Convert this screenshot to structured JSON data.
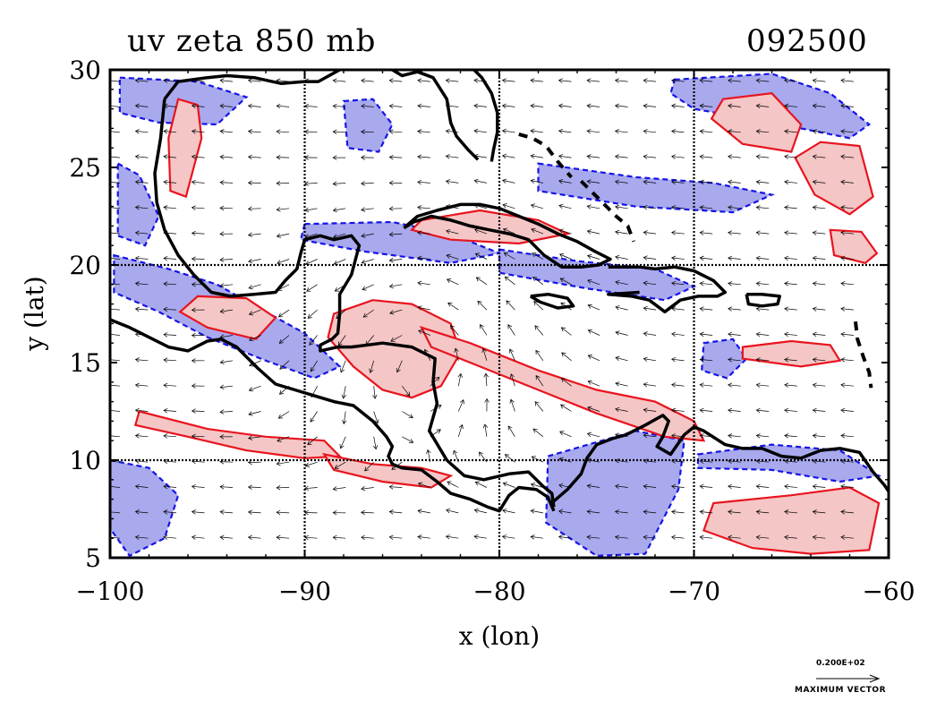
{
  "chart_data": {
    "type": "contour",
    "title_left": "uv zeta 850 mb",
    "title_right": "092500",
    "xlabel": "x (lon)",
    "ylabel": "y (lat)",
    "xlim": [
      -100,
      -60
    ],
    "ylim": [
      5,
      30
    ],
    "x_ticks": [
      -100,
      -90,
      -80,
      -70,
      -60
    ],
    "y_ticks": [
      5,
      10,
      15,
      20,
      25,
      30
    ],
    "grid_lines_x": [
      -90,
      -80,
      -70
    ],
    "grid_lines_y": [
      10,
      20
    ],
    "colors": {
      "positive_line": "#e8141e",
      "positive_fill": "#f5c6c6",
      "negative_line": "#1414e6",
      "negative_fill": "#a9a9ee",
      "coast": "#000000",
      "grid": "#000000"
    },
    "positive_regions": [
      {
        "lon": [
          -88.5,
          -86.5,
          -84.5,
          -82.5,
          -82,
          -83,
          -84.5,
          -86,
          -87.5,
          -88.8
        ],
        "lat": [
          17.5,
          18.2,
          18,
          17,
          15.5,
          13.8,
          13.2,
          13.6,
          14.8,
          16.3
        ]
      },
      {
        "lon": [
          -84,
          -81.5,
          -78,
          -75,
          -72,
          -70,
          -69.5,
          -71.5,
          -75,
          -78,
          -81,
          -83.5
        ],
        "lat": [
          16.8,
          16,
          14.6,
          13.6,
          13,
          12,
          11,
          11.2,
          12.4,
          13.6,
          14.8,
          15.8
        ]
      },
      {
        "lon": [
          -98.5,
          -95,
          -92,
          -89,
          -88.2,
          -90,
          -93,
          -96,
          -98.7
        ],
        "lat": [
          12.5,
          11.6,
          11.2,
          11,
          10.2,
          10.1,
          10.5,
          11.2,
          11.8
        ]
      },
      {
        "lon": [
          -89,
          -86.5,
          -84,
          -82.5,
          -83.5,
          -86,
          -88.5
        ],
        "lat": [
          10.3,
          9.8,
          9.6,
          9.2,
          8.6,
          8.9,
          9.5
        ]
      },
      {
        "lon": [
          -95.5,
          -93,
          -91.5,
          -92.5,
          -95,
          -96.4
        ],
        "lat": [
          18.4,
          18.3,
          17.3,
          16.2,
          16.8,
          17.6
        ]
      },
      {
        "lon": [
          -96.5,
          -95.5,
          -95.3,
          -96.1,
          -96.9,
          -97
        ],
        "lat": [
          28.5,
          28.2,
          26.5,
          23.5,
          23.8,
          26.5
        ]
      },
      {
        "lon": [
          -84,
          -81,
          -78,
          -76.5,
          -79,
          -82.5,
          -84.5
        ],
        "lat": [
          22.3,
          22.8,
          22.3,
          21.6,
          21.1,
          21.3,
          21.8
        ]
      },
      {
        "lon": [
          -68.5,
          -66,
          -64.5,
          -65,
          -67.5,
          -69.1
        ],
        "lat": [
          28.5,
          28.8,
          27.2,
          25.8,
          26.2,
          27.5
        ]
      },
      {
        "lon": [
          -63.5,
          -61.5,
          -60.8,
          -62,
          -63.8,
          -64.8
        ],
        "lat": [
          26.3,
          26.1,
          23.5,
          22.6,
          23.6,
          25.5
        ]
      },
      {
        "lon": [
          -69,
          -65,
          -62,
          -60.5,
          -61,
          -64,
          -67,
          -69.5
        ],
        "lat": [
          7.8,
          8.2,
          8.6,
          7.8,
          5.4,
          5.2,
          5.5,
          6.4
        ]
      },
      {
        "lon": [
          -67.5,
          -65,
          -63,
          -62.5,
          -64.5,
          -67.5
        ],
        "lat": [
          15.8,
          16.1,
          15.9,
          15.1,
          14.8,
          15.2
        ]
      },
      {
        "lon": [
          -63,
          -61.4,
          -60.6,
          -61.2,
          -62.8
        ],
        "lat": [
          21.8,
          21.7,
          20.6,
          20.1,
          20.5
        ]
      }
    ],
    "negative_regions": [
      {
        "lon": [
          -99.8,
          -97,
          -94.5,
          -92,
          -90,
          -88.2,
          -89.5,
          -92,
          -95,
          -97.5,
          -99.8
        ],
        "lat": [
          20.5,
          19.8,
          19,
          17.6,
          16.5,
          14.8,
          14.2,
          15.1,
          16.3,
          17.6,
          18.6
        ]
      },
      {
        "lon": [
          -99.6,
          -98.5,
          -97.5,
          -98.2,
          -99.6
        ],
        "lat": [
          25.2,
          24.6,
          22.5,
          21,
          21.5
        ]
      },
      {
        "lon": [
          -99.5,
          -95.5,
          -93,
          -94.5,
          -97.5,
          -99.5
        ],
        "lat": [
          29.6,
          29.4,
          28.6,
          27.2,
          27.3,
          27.8
        ]
      },
      {
        "lon": [
          -90,
          -85.5,
          -82.5,
          -80,
          -82.5,
          -87,
          -90.2
        ],
        "lat": [
          22.1,
          22.2,
          21.6,
          20.6,
          20.1,
          20.7,
          21.3
        ]
      },
      {
        "lon": [
          -80,
          -76,
          -72,
          -70,
          -71.5,
          -75.5,
          -80
        ],
        "lat": [
          20.8,
          20.2,
          19.8,
          18.9,
          18.2,
          18.8,
          19.6
        ]
      },
      {
        "lon": [
          -78,
          -73,
          -69,
          -66,
          -68,
          -73,
          -78
        ],
        "lat": [
          25.2,
          24.5,
          24.2,
          23.6,
          22.7,
          23,
          23.8
        ]
      },
      {
        "lon": [
          -77.5,
          -73,
          -70.5,
          -70.8,
          -72.5,
          -75,
          -77.6
        ],
        "lat": [
          10.2,
          11.5,
          11,
          8.5,
          5.2,
          5.1,
          6.8
        ]
      },
      {
        "lon": [
          -100,
          -98,
          -96.5,
          -97.2,
          -99,
          -100
        ],
        "lat": [
          10,
          9.6,
          8.2,
          6,
          5.1,
          6.5
        ]
      },
      {
        "lon": [
          -71,
          -66,
          -63,
          -61,
          -62,
          -66,
          -70,
          -71.2
        ],
        "lat": [
          29.5,
          29.8,
          28.8,
          27.2,
          26.5,
          27.3,
          28,
          28.8
        ]
      },
      {
        "lon": [
          -88,
          -86.5,
          -85.5,
          -86.2,
          -87.8
        ],
        "lat": [
          28.4,
          28.5,
          27.2,
          25.8,
          26
        ]
      },
      {
        "lon": [
          -69.5,
          -68,
          -67.3,
          -68.3,
          -69.6
        ],
        "lat": [
          16,
          16.2,
          15.2,
          14.2,
          14.6
        ]
      },
      {
        "lon": [
          -69.8,
          -66,
          -62.5,
          -60.5,
          -62.5,
          -66,
          -69.8
        ],
        "lat": [
          10.3,
          10.8,
          10.5,
          9.2,
          8.9,
          9.5,
          9.6
        ]
      }
    ],
    "coastlines": [
      {
        "name": "mexico-gulf-coast",
        "lon": [
          -97.2,
          -97.4,
          -97.7,
          -97.6,
          -97.2,
          -96.5,
          -95.7,
          -94.8,
          -93.8,
          -92.6,
          -91.5,
          -91,
          -90.4,
          -90.2,
          -90,
          -89.2,
          -88.5,
          -87.6,
          -87.2,
          -87.6,
          -88.2,
          -88.2,
          -88.3,
          -88.6,
          -89.2,
          -89.2,
          -88.3,
          -87.6,
          -86,
          -84.5,
          -83.3,
          -83.4,
          -83.2,
          -83.6,
          -82.7,
          -81.8,
          -80.8,
          -79.5,
          -78.5,
          -77.8,
          -77.3,
          -77.2
        ],
        "lat": [
          28.5,
          26.5,
          24.7,
          23.2,
          21.8,
          20.5,
          19.5,
          18.6,
          18.4,
          18.5,
          18.6,
          19.2,
          19.8,
          20.6,
          21.3,
          21.5,
          21.3,
          21.5,
          21,
          19.5,
          18.5,
          17.5,
          16.5,
          16.2,
          15.9,
          15.6,
          15.8,
          15.8,
          16,
          15.8,
          15.2,
          14,
          12.9,
          11.5,
          10,
          9.2,
          9,
          9.3,
          9.4,
          8.7,
          8.3,
          7.6
        ]
      },
      {
        "name": "us-gulf-coast",
        "lon": [
          -97.2,
          -96.5,
          -95,
          -94,
          -92.6,
          -91.2,
          -90,
          -89.3,
          -88.2,
          -87.3,
          -86,
          -85,
          -84.2,
          -83.4,
          -82.7,
          -82.5,
          -82.2,
          -81.6,
          -81.1
        ],
        "lat": [
          28.5,
          29.4,
          29.6,
          29.7,
          29.6,
          29.3,
          29.4,
          29.4,
          30,
          30.3,
          30.3,
          29.7,
          29.9,
          29.6,
          28.5,
          27.3,
          26.6,
          25.9,
          25.4
        ]
      },
      {
        "name": "florida-east-coast",
        "lon": [
          -80.4,
          -80.3,
          -80.1,
          -80.1,
          -80.4,
          -80.9,
          -81.3
        ],
        "lat": [
          25.3,
          25.9,
          26.8,
          27.8,
          28.8,
          29.6,
          30
        ]
      },
      {
        "name": "mexico-pacific-coast",
        "lon": [
          -100,
          -99,
          -98,
          -97,
          -96,
          -95,
          -94.3,
          -93.5,
          -92.4,
          -91.5,
          -90.5,
          -89.5,
          -88.5,
          -87.5,
          -86.5,
          -85.8,
          -85.5,
          -85.7,
          -85.5,
          -85,
          -84,
          -83.2,
          -82.5,
          -81.5,
          -80.6,
          -80,
          -79.5,
          -79,
          -78.1,
          -77.5,
          -77.2
        ],
        "lat": [
          17.2,
          16.8,
          16.3,
          15.8,
          15.6,
          16.1,
          16.2,
          15.8,
          14.7,
          13.9,
          13.6,
          13.3,
          13,
          12.8,
          12,
          11.2,
          10.7,
          10.2,
          9.8,
          9.6,
          9.5,
          8.9,
          8.3,
          8,
          7.6,
          7.4,
          8.2,
          8.6,
          8.5,
          8.1,
          7.4
        ]
      },
      {
        "name": "south-america-coast",
        "lon": [
          -77.2,
          -76.5,
          -75.8,
          -75.5,
          -75,
          -74.2,
          -73.5,
          -72.5,
          -71.6,
          -71.3,
          -71.6,
          -71.9,
          -71.2,
          -70.5,
          -70,
          -69.5,
          -68.4,
          -67.5,
          -66.5,
          -65.5,
          -64.5,
          -63.5,
          -62.5,
          -61.5,
          -60.8,
          -60.2,
          -60
        ],
        "lat": [
          7.9,
          8.5,
          9.3,
          10.1,
          10.8,
          11.1,
          11.3,
          11.8,
          12.3,
          12,
          11.2,
          10.7,
          10.3,
          11.3,
          11.7,
          11.5,
          10.8,
          10.6,
          10.6,
          10.2,
          10.1,
          10.5,
          10.6,
          10.4,
          9.4,
          8.7,
          8.4
        ]
      },
      {
        "name": "cuba",
        "lon": [
          -84.9,
          -84.2,
          -83.2,
          -82,
          -81,
          -80,
          -79,
          -78,
          -77,
          -76,
          -75.1,
          -74.3,
          -74.9,
          -75.8,
          -76.8,
          -77.7,
          -78.5,
          -79.5,
          -80.5,
          -81.5,
          -82.5,
          -83.5,
          -84.4,
          -84.9
        ],
        "lat": [
          21.9,
          22.5,
          22.8,
          23.1,
          23.1,
          22.9,
          22.5,
          22.1,
          21.6,
          21.2,
          20.7,
          20.3,
          20,
          19.9,
          19.9,
          20.5,
          21.3,
          21.6,
          21.8,
          22,
          22.3,
          22.5,
          22.2,
          21.9
        ]
      },
      {
        "name": "hispaniola",
        "lon": [
          -74.4,
          -73.4,
          -72.8,
          -72,
          -71,
          -70,
          -69,
          -68.4,
          -68.8,
          -69.8,
          -70.7,
          -71.5,
          -72.3,
          -73.2,
          -74.4,
          -72.8
        ],
        "lat": [
          19.9,
          19.9,
          19.9,
          19.8,
          19.9,
          19.7,
          19.2,
          18.6,
          18.4,
          18.4,
          18.2,
          17.6,
          18.2,
          18.4,
          18.5,
          18.6
        ]
      },
      {
        "name": "jamaica",
        "lon": [
          -78.4,
          -77.5,
          -76.5,
          -76.2,
          -77,
          -77.9,
          -78.4
        ],
        "lat": [
          18.4,
          18.5,
          18.3,
          17.9,
          17.8,
          18.1,
          18.4
        ]
      },
      {
        "name": "puerto-rico",
        "lon": [
          -67.3,
          -66.5,
          -65.6,
          -65.7,
          -66.5,
          -67.2,
          -67.3
        ],
        "lat": [
          18.5,
          18.5,
          18.4,
          18,
          17.9,
          18,
          18.5
        ]
      }
    ],
    "dashed_islands": [
      {
        "name": "bahamas-west",
        "lon": [
          -79,
          -78.3,
          -77.6,
          -77,
          -76.3
        ],
        "lat": [
          26.7,
          26.5,
          26.1,
          25.3,
          24.5
        ]
      },
      {
        "name": "bahamas-east",
        "lon": [
          -75.8,
          -75.2,
          -74.6,
          -74,
          -73.4,
          -73.1
        ],
        "lat": [
          24.3,
          23.7,
          23.1,
          22.5,
          22,
          21.2
        ]
      },
      {
        "name": "lesser-antilles",
        "lon": [
          -61.7,
          -61.6,
          -61.3,
          -61,
          -60.9
        ],
        "lat": [
          17.1,
          16.2,
          15.3,
          14.5,
          13.7
        ]
      }
    ],
    "reference_vector": {
      "value_label": "0.200E+02",
      "label": "MAXIMUM VECTOR"
    }
  }
}
